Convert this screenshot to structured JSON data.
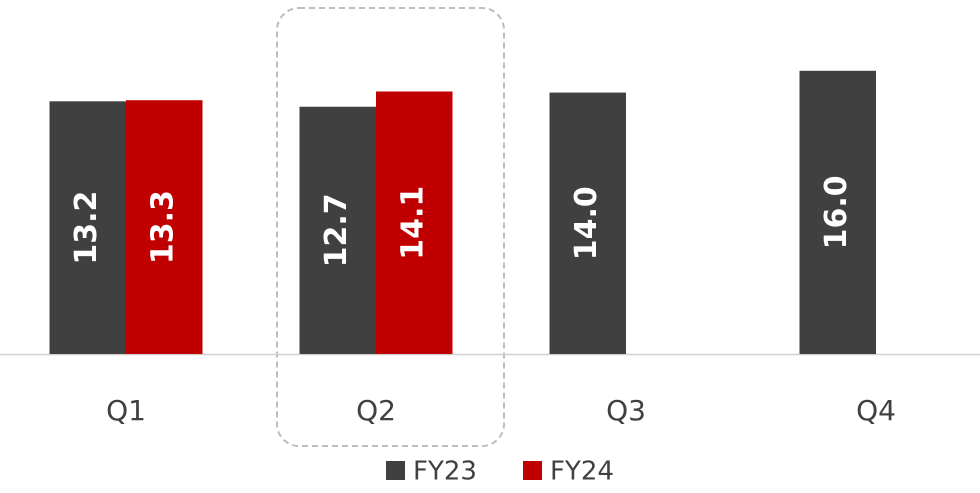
{
  "chart_data": {
    "type": "bar",
    "categories": [
      "Q1",
      "Q2",
      "Q3",
      "Q4"
    ],
    "series": [
      {
        "name": "FY23",
        "color": "#404040",
        "values": [
          13.2,
          12.7,
          14.0,
          16.0
        ],
        "value_labels": [
          "13.2",
          "12.7",
          "14.0",
          "16.0"
        ]
      },
      {
        "name": "FY24",
        "color": "#c00000",
        "values": [
          13.3,
          14.1,
          null,
          null
        ],
        "value_labels": [
          "13.3",
          "14.1",
          null,
          null
        ]
      }
    ],
    "ylim": [
      -10,
      22.5
    ]
  }
}
